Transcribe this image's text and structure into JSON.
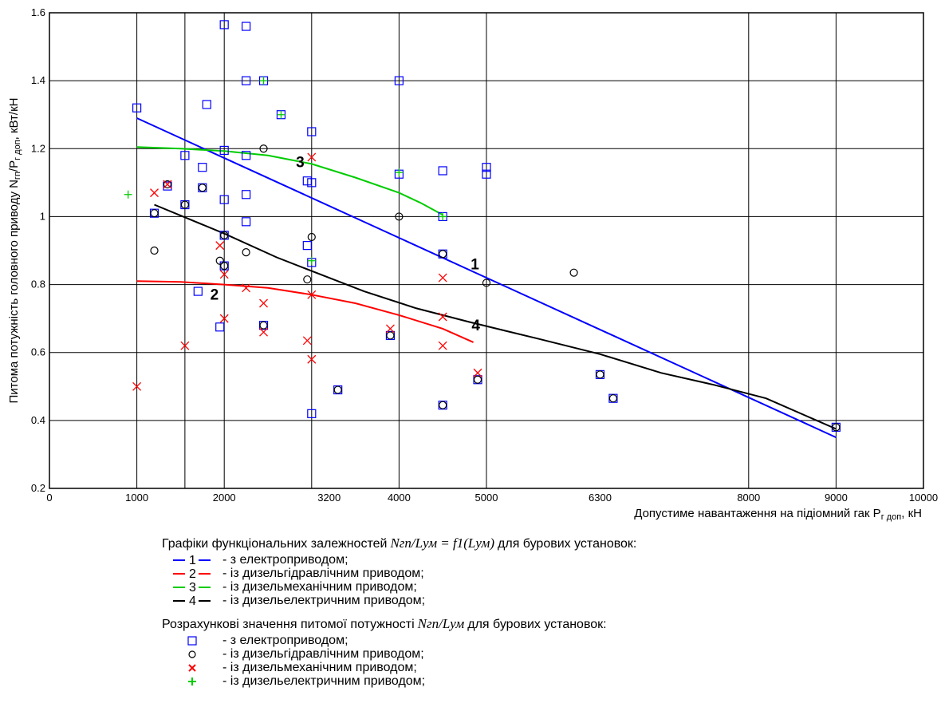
{
  "chart_data": {
    "type": "scatter",
    "xlabel": "Допустиме навантаження на підіомний гак P",
    "xlabel_sub": "г доп",
    "xlabel_unit": ", кН",
    "ylabel": "Питома потужність головного приводу N",
    "ylabel_sub1": "гп",
    "ylabel_mid": "/P",
    "ylabel_sub2": "г доп",
    "ylabel_unit": ", кВт/кН",
    "xlim": [
      0,
      10000
    ],
    "ylim": [
      0.2,
      1.6
    ],
    "grid": true,
    "x_ticks": [
      {
        "value": 0,
        "label": "0"
      },
      {
        "value": 1000,
        "label": "1000"
      },
      {
        "value": 2000,
        "label": "2000"
      },
      {
        "value": 3200,
        "label": "3200"
      },
      {
        "value": 4000,
        "label": "4000"
      },
      {
        "value": 5000,
        "label": "5000"
      },
      {
        "value": 6300,
        "label": "6300"
      },
      {
        "value": 8000,
        "label": "8000"
      },
      {
        "value": 9000,
        "label": "9000"
      },
      {
        "value": 10000,
        "label": "10000"
      }
    ],
    "x_gridlines": [
      1000,
      1550,
      2000,
      3000,
      4000,
      5000,
      8000,
      9000
    ],
    "y_ticks": [
      {
        "value": 0.2,
        "label": "0.2"
      },
      {
        "value": 0.4,
        "label": "0.4"
      },
      {
        "value": 0.6,
        "label": "0.6"
      },
      {
        "value": 0.8,
        "label": "0.8"
      },
      {
        "value": 1.0,
        "label": "1"
      },
      {
        "value": 1.2,
        "label": "1.2"
      },
      {
        "value": 1.4,
        "label": "1.4"
      },
      {
        "value": 1.6,
        "label": "1.6"
      }
    ],
    "curves": [
      {
        "label": "1",
        "color": "#0000ff",
        "label_at": [
          4820,
          0.845
        ],
        "points": [
          [
            1000,
            1.29
          ],
          [
            9000,
            0.35
          ]
        ]
      },
      {
        "label": "2",
        "color": "#ff0000",
        "label_at": [
          1840,
          0.755
        ],
        "points": [
          [
            1000,
            0.81
          ],
          [
            1500,
            0.808
          ],
          [
            2000,
            0.8
          ],
          [
            2500,
            0.79
          ],
          [
            3000,
            0.77
          ],
          [
            3500,
            0.745
          ],
          [
            4000,
            0.71
          ],
          [
            4500,
            0.67
          ],
          [
            4850,
            0.63
          ]
        ]
      },
      {
        "label": "3",
        "color": "#00cc00",
        "label_at": [
          2820,
          1.145
        ],
        "points": [
          [
            1000,
            1.205
          ],
          [
            1500,
            1.2
          ],
          [
            2000,
            1.193
          ],
          [
            2500,
            1.18
          ],
          [
            3000,
            1.155
          ],
          [
            3500,
            1.115
          ],
          [
            4000,
            1.07
          ],
          [
            4250,
            1.04
          ],
          [
            4500,
            1.005
          ]
        ]
      },
      {
        "label": "4",
        "color": "#000000",
        "label_at": [
          4830,
          0.665
        ],
        "points": [
          [
            1200,
            1.035
          ],
          [
            2000,
            0.95
          ],
          [
            2600,
            0.88
          ],
          [
            3200,
            0.82
          ],
          [
            3600,
            0.78
          ],
          [
            4200,
            0.73
          ],
          [
            4800,
            0.69
          ],
          [
            5600,
            0.64
          ],
          [
            6300,
            0.595
          ],
          [
            7000,
            0.54
          ],
          [
            7600,
            0.505
          ],
          [
            8200,
            0.465
          ],
          [
            9000,
            0.375
          ]
        ]
      }
    ],
    "series": [
      {
        "name": "square",
        "color": "#0000ff",
        "marker": "square",
        "points": [
          [
            1000,
            1.32
          ],
          [
            1200,
            1.01
          ],
          [
            1350,
            1.09
          ],
          [
            1550,
            1.18
          ],
          [
            1550,
            1.035
          ],
          [
            1700,
            0.78
          ],
          [
            1750,
            1.145
          ],
          [
            1750,
            1.085
          ],
          [
            1800,
            1.33
          ],
          [
            1950,
            0.675
          ],
          [
            2000,
            1.565
          ],
          [
            2000,
            1.195
          ],
          [
            2000,
            1.05
          ],
          [
            2000,
            0.945
          ],
          [
            2000,
            0.855
          ],
          [
            2250,
            1.56
          ],
          [
            2250,
            1.4
          ],
          [
            2250,
            1.18
          ],
          [
            2250,
            1.065
          ],
          [
            2250,
            0.985
          ],
          [
            2450,
            1.4
          ],
          [
            2450,
            0.68
          ],
          [
            2650,
            1.3
          ],
          [
            2950,
            0.915
          ],
          [
            2950,
            1.105
          ],
          [
            3000,
            1.25
          ],
          [
            3000,
            1.1
          ],
          [
            3000,
            0.865
          ],
          [
            3000,
            0.42
          ],
          [
            3300,
            0.49
          ],
          [
            3900,
            0.65
          ],
          [
            4000,
            1.4
          ],
          [
            4000,
            1.125
          ],
          [
            4500,
            1.135
          ],
          [
            4500,
            1.0
          ],
          [
            4500,
            0.89
          ],
          [
            4500,
            0.445
          ],
          [
            4900,
            0.52
          ],
          [
            5000,
            1.145
          ],
          [
            5000,
            1.125
          ],
          [
            6300,
            0.535
          ],
          [
            6450,
            0.465
          ],
          [
            9000,
            0.38
          ]
        ]
      },
      {
        "name": "circle",
        "color": "#000000",
        "marker": "circle",
        "points": [
          [
            1200,
            0.9
          ],
          [
            1200,
            1.01
          ],
          [
            1350,
            1.095
          ],
          [
            1550,
            1.035
          ],
          [
            1750,
            1.085
          ],
          [
            1950,
            0.87
          ],
          [
            2000,
            0.855
          ],
          [
            2000,
            0.945
          ],
          [
            2250,
            0.895
          ],
          [
            2450,
            1.2
          ],
          [
            2450,
            0.68
          ],
          [
            2950,
            0.815
          ],
          [
            3000,
            0.94
          ],
          [
            3300,
            0.49
          ],
          [
            3900,
            0.65
          ],
          [
            4000,
            1.0
          ],
          [
            4500,
            0.89
          ],
          [
            4500,
            0.445
          ],
          [
            4900,
            0.52
          ],
          [
            5000,
            0.805
          ],
          [
            6000,
            0.835
          ],
          [
            6300,
            0.535
          ],
          [
            6450,
            0.465
          ],
          [
            9000,
            0.38
          ]
        ]
      },
      {
        "name": "cross",
        "color": "#ff0000",
        "marker": "x",
        "points": [
          [
            1000,
            0.5
          ],
          [
            1200,
            1.07
          ],
          [
            1350,
            1.095
          ],
          [
            1550,
            0.62
          ],
          [
            1950,
            0.915
          ],
          [
            2000,
            0.83
          ],
          [
            2000,
            0.7
          ],
          [
            2250,
            0.79
          ],
          [
            2450,
            0.745
          ],
          [
            2450,
            0.66
          ],
          [
            2950,
            0.635
          ],
          [
            3000,
            0.58
          ],
          [
            3000,
            1.175
          ],
          [
            3000,
            0.77
          ],
          [
            3900,
            0.67
          ],
          [
            4500,
            0.82
          ],
          [
            4500,
            0.705
          ],
          [
            4500,
            0.62
          ],
          [
            4900,
            0.54
          ]
        ]
      },
      {
        "name": "plus",
        "color": "#00cc00",
        "marker": "plus",
        "points": [
          [
            900,
            1.065
          ],
          [
            2450,
            1.4
          ],
          [
            2650,
            1.3
          ],
          [
            3000,
            0.87
          ],
          [
            4000,
            1.13
          ],
          [
            4500,
            1.0
          ]
        ]
      }
    ]
  },
  "legend": {
    "curves_heading": {
      "before": "Графіки функціональних залежностей",
      "formula": "Nгп/Lум = f1(Lум)",
      "after": "для бурових установок:"
    },
    "curve_items": [
      {
        "num": "1",
        "color": "#0000ff",
        "text": "- з електроприводом;"
      },
      {
        "num": "2",
        "color": "#ff0000",
        "text": "- із дизельгідравлічним приводом;"
      },
      {
        "num": "3",
        "color": "#00cc00",
        "text": "- із дизельмеханічним приводом;"
      },
      {
        "num": "4",
        "color": "#000000",
        "text": "- із дизельелектричним приводом;"
      }
    ],
    "points_heading": {
      "before": "Розрахункові значення питомої потужності",
      "formula": "Nгп/Lум",
      "after": "для бурових установок:"
    },
    "point_items": [
      {
        "marker": "square",
        "glyph": "□",
        "color": "#0000ff",
        "text": "- з електроприводом;"
      },
      {
        "marker": "circle",
        "glyph": "○",
        "color": "#000000",
        "text": "- із дизельгідравлічним приводом;"
      },
      {
        "marker": "x",
        "glyph": "×",
        "color": "#ff0000",
        "text": "- із дизельмеханічним приводом;"
      },
      {
        "marker": "plus",
        "glyph": "+",
        "color": "#00cc00",
        "text": "- із дизельелектричним приводом;"
      }
    ]
  }
}
